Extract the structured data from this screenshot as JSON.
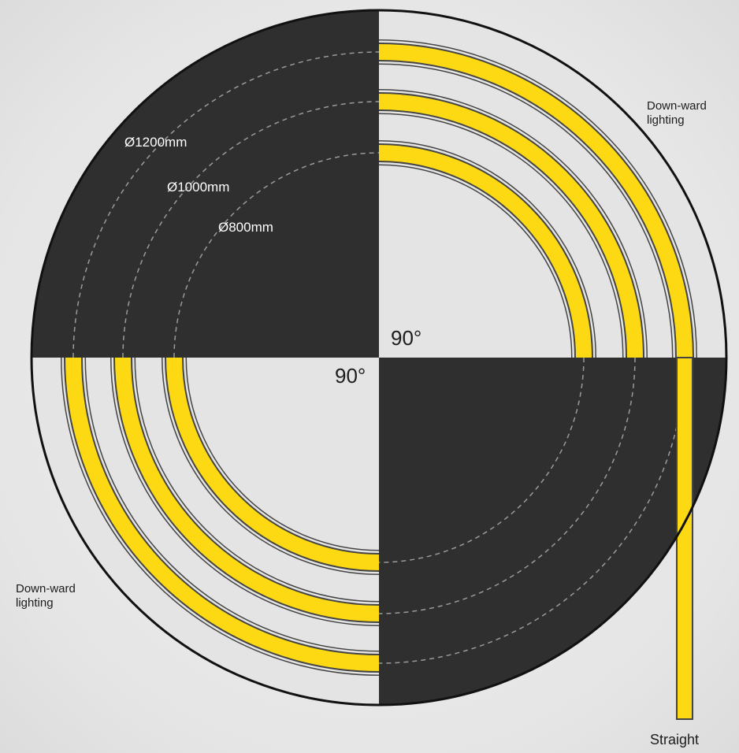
{
  "diagram": {
    "diameters": [
      {
        "label": "Ø1200mm",
        "diameter_mm": 1200
      },
      {
        "label": "Ø1000mm",
        "diameter_mm": 1000
      },
      {
        "label": "Ø800mm",
        "diameter_mm": 800
      }
    ],
    "angles": [
      "90°",
      "90°"
    ],
    "lighting_labels": {
      "top_right": "Down-ward\nlighting",
      "bottom_left": "Down-ward\nlighting"
    },
    "straight_label": "Straight",
    "colors": {
      "dark_quadrant": "#2f2f2f",
      "light_quadrant": "#e4e4e4",
      "strip_fill": "#fcd912",
      "strip_outline": "#444444",
      "circle_outline": "#111111",
      "dashed_guide": "#9a9a9a"
    }
  }
}
